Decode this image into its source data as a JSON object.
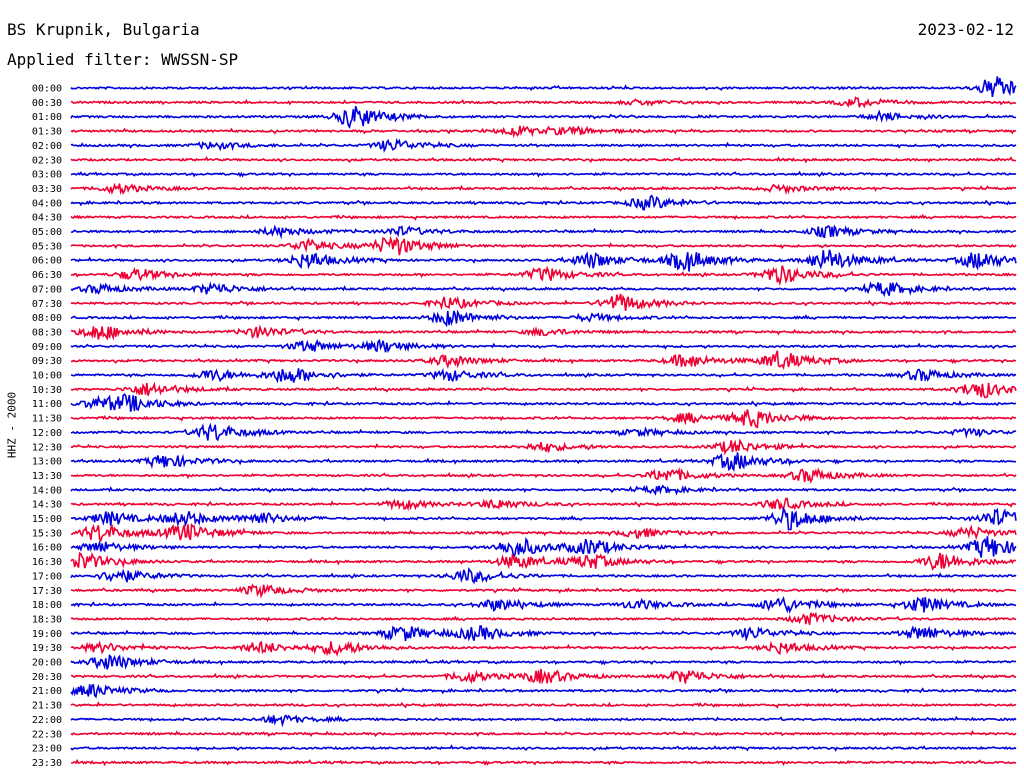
{
  "header": {
    "station": "BS Krupnik, Bulgaria",
    "date": "2023-02-12",
    "filter": "Applied filter: WWSSN-SP"
  },
  "chart_data": {
    "type": "line",
    "title": "BS Krupnik, Bulgaria",
    "ylabel": "HHZ - 2000",
    "trace_colors": [
      "#0000dd",
      "#ee0033"
    ],
    "rows": [
      {
        "label": "00:00",
        "activity": [
          [
            0.98,
            1.0
          ]
        ]
      },
      {
        "label": "00:30",
        "activity": [
          [
            0.83,
            0.4
          ],
          [
            0.6,
            0.2
          ]
        ]
      },
      {
        "label": "01:00",
        "activity": [
          [
            0.3,
            1.0
          ],
          [
            0.86,
            0.3
          ]
        ]
      },
      {
        "label": "01:30",
        "activity": [
          [
            0.47,
            0.4
          ],
          [
            0.53,
            0.3
          ]
        ]
      },
      {
        "label": "02:00",
        "activity": [
          [
            0.15,
            0.3
          ],
          [
            0.34,
            0.5
          ]
        ]
      },
      {
        "label": "02:30",
        "activity": []
      },
      {
        "label": "03:00",
        "activity": []
      },
      {
        "label": "03:30",
        "activity": [
          [
            0.05,
            0.4
          ],
          [
            0.75,
            0.3
          ]
        ]
      },
      {
        "label": "04:00",
        "activity": [
          [
            0.61,
            0.6
          ]
        ]
      },
      {
        "label": "04:30",
        "activity": []
      },
      {
        "label": "05:00",
        "activity": [
          [
            0.22,
            0.4
          ],
          [
            0.35,
            0.4
          ],
          [
            0.8,
            0.5
          ]
        ]
      },
      {
        "label": "05:30",
        "activity": [
          [
            0.25,
            0.5
          ],
          [
            0.34,
            0.9
          ]
        ]
      },
      {
        "label": "06:00",
        "activity": [
          [
            0.25,
            0.7
          ],
          [
            0.55,
            0.7
          ],
          [
            0.65,
            0.9
          ],
          [
            0.8,
            1.0
          ],
          [
            0.96,
            0.8
          ]
        ]
      },
      {
        "label": "06:30",
        "activity": [
          [
            0.07,
            0.5
          ],
          [
            0.5,
            0.6
          ],
          [
            0.75,
            0.8
          ]
        ]
      },
      {
        "label": "07:00",
        "activity": [
          [
            0.03,
            0.4
          ],
          [
            0.15,
            0.5
          ],
          [
            0.86,
            0.6
          ]
        ]
      },
      {
        "label": "07:30",
        "activity": [
          [
            0.4,
            0.5
          ],
          [
            0.58,
            0.8
          ]
        ]
      },
      {
        "label": "08:00",
        "activity": [
          [
            0.4,
            0.7
          ],
          [
            0.55,
            0.3
          ]
        ]
      },
      {
        "label": "08:30",
        "activity": [
          [
            0.03,
            0.7
          ],
          [
            0.2,
            0.5
          ],
          [
            0.5,
            0.3
          ]
        ]
      },
      {
        "label": "09:00",
        "activity": [
          [
            0.25,
            0.5
          ],
          [
            0.33,
            0.5
          ]
        ]
      },
      {
        "label": "09:30",
        "activity": [
          [
            0.4,
            0.5
          ],
          [
            0.65,
            0.6
          ],
          [
            0.75,
            0.8
          ]
        ]
      },
      {
        "label": "10:00",
        "activity": [
          [
            0.15,
            0.5
          ],
          [
            0.23,
            0.7
          ],
          [
            0.4,
            0.5
          ],
          [
            0.9,
            0.5
          ]
        ]
      },
      {
        "label": "10:30",
        "activity": [
          [
            0.08,
            0.6
          ],
          [
            0.96,
            0.8
          ]
        ]
      },
      {
        "label": "11:00",
        "activity": [
          [
            0.03,
            0.5
          ],
          [
            0.06,
            0.6
          ]
        ]
      },
      {
        "label": "11:30",
        "activity": [
          [
            0.65,
            0.4
          ],
          [
            0.72,
            0.8
          ]
        ]
      },
      {
        "label": "12:00",
        "activity": [
          [
            0.15,
            0.8
          ],
          [
            0.6,
            0.3
          ],
          [
            0.95,
            0.3
          ]
        ]
      },
      {
        "label": "12:30",
        "activity": [
          [
            0.5,
            0.4
          ],
          [
            0.7,
            0.6
          ]
        ]
      },
      {
        "label": "13:00",
        "activity": [
          [
            0.1,
            0.6
          ],
          [
            0.7,
            0.8
          ]
        ]
      },
      {
        "label": "13:30",
        "activity": [
          [
            0.63,
            0.6
          ],
          [
            0.78,
            0.6
          ]
        ]
      },
      {
        "label": "14:00",
        "activity": [
          [
            0.62,
            0.3
          ]
        ]
      },
      {
        "label": "14:30",
        "activity": [
          [
            0.35,
            0.4
          ],
          [
            0.45,
            0.4
          ],
          [
            0.75,
            0.5
          ]
        ]
      },
      {
        "label": "15:00",
        "activity": [
          [
            0.04,
            0.6
          ],
          [
            0.12,
            0.6
          ],
          [
            0.2,
            0.5
          ],
          [
            0.76,
            1.0
          ],
          [
            0.98,
            0.8
          ]
        ]
      },
      {
        "label": "15:30",
        "activity": [
          [
            0.03,
            0.8
          ],
          [
            0.12,
            0.8
          ],
          [
            0.6,
            0.4
          ],
          [
            0.95,
            0.5
          ]
        ]
      },
      {
        "label": "16:00",
        "activity": [
          [
            0.03,
            0.5
          ],
          [
            0.47,
            0.9
          ],
          [
            0.55,
            0.7
          ],
          [
            0.97,
            1.0
          ]
        ]
      },
      {
        "label": "16:30",
        "activity": [
          [
            0.01,
            0.8
          ],
          [
            0.47,
            0.6
          ],
          [
            0.55,
            0.6
          ],
          [
            0.92,
            0.8
          ]
        ]
      },
      {
        "label": "17:00",
        "activity": [
          [
            0.05,
            0.6
          ],
          [
            0.42,
            0.6
          ]
        ]
      },
      {
        "label": "17:30",
        "activity": [
          [
            0.2,
            0.5
          ]
        ]
      },
      {
        "label": "18:00",
        "activity": [
          [
            0.45,
            0.5
          ],
          [
            0.6,
            0.4
          ],
          [
            0.75,
            0.7
          ],
          [
            0.9,
            0.7
          ]
        ]
      },
      {
        "label": "18:30",
        "activity": [
          [
            0.78,
            0.5
          ]
        ]
      },
      {
        "label": "19:00",
        "activity": [
          [
            0.35,
            0.7
          ],
          [
            0.43,
            0.6
          ],
          [
            0.72,
            0.5
          ],
          [
            0.9,
            0.6
          ]
        ]
      },
      {
        "label": "19:30",
        "activity": [
          [
            0.03,
            0.4
          ],
          [
            0.2,
            0.5
          ],
          [
            0.28,
            0.6
          ],
          [
            0.75,
            0.5
          ]
        ]
      },
      {
        "label": "20:00",
        "activity": [
          [
            0.04,
            0.7
          ]
        ]
      },
      {
        "label": "20:30",
        "activity": [
          [
            0.42,
            0.5
          ],
          [
            0.5,
            0.6
          ],
          [
            0.65,
            0.6
          ]
        ]
      },
      {
        "label": "21:00",
        "activity": [
          [
            0.02,
            0.6
          ]
        ]
      },
      {
        "label": "21:30",
        "activity": []
      },
      {
        "label": "22:00",
        "activity": [
          [
            0.22,
            0.4
          ]
        ]
      },
      {
        "label": "22:30",
        "activity": []
      },
      {
        "label": "23:00",
        "activity": []
      },
      {
        "label": "23:30",
        "activity": []
      }
    ]
  }
}
